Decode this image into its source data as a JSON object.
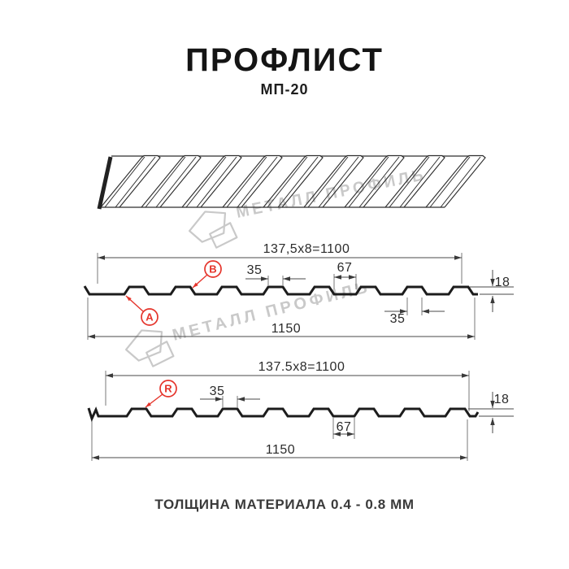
{
  "page": {
    "title": "ПРОФЛИСТ",
    "subtitle": "МП-20",
    "footer": "ТОЛЩИНА МАТЕРИАЛА 0.4 - 0.8 ММ"
  },
  "watermark": {
    "text": "МЕТАЛЛ ПРОФИЛЬ"
  },
  "colors": {
    "accent_red": "#e5342b",
    "line_dark": "#1c1c1c",
    "watermark_gray": "#c9c9c9"
  },
  "section_top": {
    "dim_pitch": "137,5x8=1100",
    "dim_total": "1150",
    "dim_crest_width": "35",
    "dim_valley_width": "67",
    "dim_height": "18",
    "dim_rib_width": "35",
    "label_a": "A",
    "label_b": "B"
  },
  "section_bottom": {
    "dim_pitch": "137.5x8=1100",
    "dim_total": "1150",
    "dim_crest_width": "35",
    "dim_valley_width": "67",
    "dim_height": "18",
    "label_r": "R"
  }
}
